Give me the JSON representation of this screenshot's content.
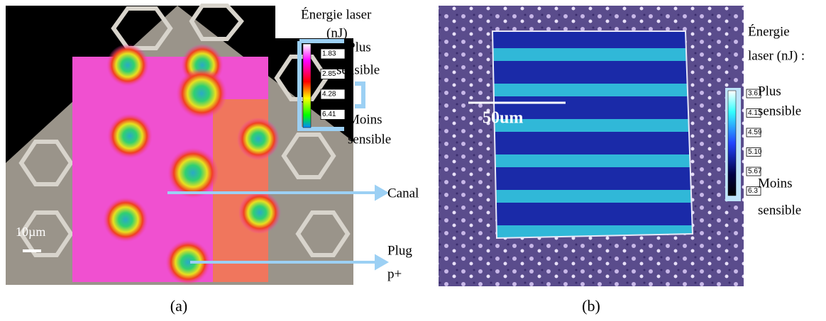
{
  "panels": [
    {
      "label": "(a)",
      "legend": {
        "title_line1": "Énergie laser",
        "title_line2": "(nJ)",
        "ticks": [
          "1.83",
          "2.85",
          "4.28",
          "6.41"
        ],
        "high": [
          "Plus",
          "sensible"
        ],
        "low": [
          "Moins",
          "sensible"
        ]
      },
      "scale_bar": "10µm",
      "annotations": [
        {
          "lines": [
            "Canal"
          ]
        },
        {
          "lines": [
            "Plug",
            "p+"
          ]
        }
      ]
    },
    {
      "label": "(b)",
      "legend": {
        "title_line1": "Énergie",
        "title_line2": "laser (nJ) :",
        "ticks": [
          "3.6",
          "4.1",
          "4.59",
          "5.10",
          "5.67",
          "6.3"
        ],
        "high": [
          "Plus",
          "sensible"
        ],
        "low": [
          "Moins",
          "sensible"
        ]
      },
      "scale_bar": "50um"
    }
  ]
}
